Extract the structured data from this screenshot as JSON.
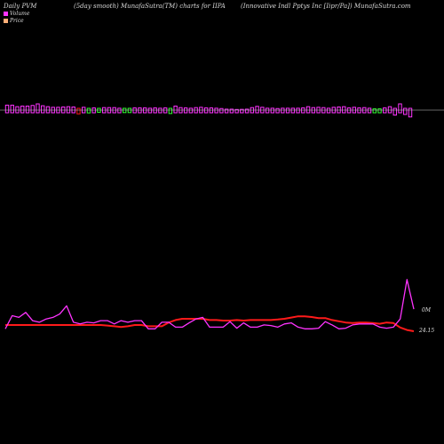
{
  "header": {
    "left": "Daily PVM",
    "middle": "(5day smooth) MunafaSutra(TM) charts for IIPA",
    "right": "(Innovative Indl Pptys Inc [Iipr/Pa]) MunafaSutra.com"
  },
  "legend": {
    "volume": {
      "label": "Volume",
      "color": "#ff33ff"
    },
    "price": {
      "label": "Price",
      "color": "#ffb078"
    }
  },
  "colors": {
    "volume_line": "#ff33ff",
    "price_line": "#ff1a1a",
    "bar_up": "#ff33ff",
    "bar_down_red": "#ff1a1a",
    "bar_down_green": "#33ff33",
    "background": "#000000",
    "zero_line": "#cccccc"
  },
  "chart_data": {
    "type": "line",
    "title": "",
    "xlabel": "",
    "ylabel": "",
    "grid": false,
    "legend_position": "top-left",
    "x": [
      1,
      2,
      3,
      4,
      5,
      6,
      7,
      8,
      9,
      10,
      11,
      12,
      13,
      14,
      15,
      16,
      17,
      18,
      19,
      20,
      21,
      22,
      23,
      24,
      25,
      26,
      27,
      28,
      29,
      30,
      31,
      32,
      33,
      34,
      35,
      36,
      37,
      38,
      39,
      40,
      41,
      42,
      43,
      44,
      45,
      46,
      47,
      48,
      49,
      50,
      51,
      52,
      53,
      54,
      55,
      56,
      57,
      58,
      59,
      60,
      61
    ],
    "series": [
      {
        "kind": "price",
        "values": [
          24.4,
          24.4,
          24.4,
          24.4,
          24.4,
          24.4,
          24.4,
          24.4,
          24.4,
          24.4,
          24.4,
          24.4,
          24.4,
          24.4,
          24.4,
          24.38,
          24.35,
          24.32,
          24.35,
          24.4,
          24.4,
          24.35,
          24.35,
          24.35,
          24.5,
          24.6,
          24.65,
          24.65,
          24.65,
          24.65,
          24.6,
          24.6,
          24.58,
          24.58,
          24.6,
          24.58,
          24.6,
          24.6,
          24.6,
          24.6,
          24.62,
          24.65,
          24.7,
          24.75,
          24.75,
          24.72,
          24.68,
          24.68,
          24.6,
          24.55,
          24.5,
          24.48,
          24.5,
          24.5,
          24.48,
          24.45,
          24.5,
          24.48,
          24.3,
          24.2,
          24.15
        ]
      },
      {
        "kind": "volume",
        "values": [
          0.1,
          0.5,
          0.45,
          0.6,
          0.35,
          0.3,
          0.4,
          0.45,
          0.55,
          0.8,
          0.3,
          0.25,
          0.3,
          0.28,
          0.35,
          0.35,
          0.25,
          0.35,
          0.3,
          0.35,
          0.35,
          0.1,
          0.1,
          0.3,
          0.3,
          0.15,
          0.15,
          0.28,
          0.4,
          0.45,
          0.15,
          0.15,
          0.15,
          0.32,
          0.12,
          0.28,
          0.15,
          0.15,
          0.22,
          0.2,
          0.15,
          0.25,
          0.28,
          0.15,
          0.1,
          0.1,
          0.12,
          0.32,
          0.22,
          0.1,
          0.12,
          0.22,
          0.25,
          0.25,
          0.25,
          0.15,
          0.12,
          0.15,
          0.4,
          1.6,
          0.7
        ]
      }
    ],
    "bars": [
      0.8,
      0.8,
      0.55,
      0.65,
      0.65,
      0.75,
      1.0,
      0.7,
      0.55,
      0.45,
      0.45,
      0.5,
      0.55,
      0.5,
      -0.6,
      0.45,
      -0.45,
      0.35,
      -0.35,
      0.4,
      0.4,
      0.4,
      0.3,
      -0.4,
      -0.4,
      0.35,
      0.35,
      0.35,
      0.3,
      0.35,
      0.3,
      0.35,
      -0.55,
      0.65,
      0.4,
      0.35,
      0.3,
      0.4,
      0.45,
      0.35,
      0.35,
      0.3,
      0.25,
      0.15,
      0.15,
      0.1,
      0.12,
      0.15,
      0.4,
      0.6,
      0.45,
      0.3,
      0.3,
      0.25,
      0.3,
      0.3,
      0.3,
      0.3,
      0.35,
      0.55,
      0.4,
      0.45,
      0.4,
      0.3,
      0.45,
      0.5,
      0.55,
      0.35,
      0.45,
      0.35,
      0.4,
      0.3,
      0.2,
      0.2,
      0.35,
      0.55,
      -0.8,
      1.0,
      -0.7,
      -1.1
    ],
    "bar_colors": [
      "m",
      "m",
      "m",
      "m",
      "m",
      "m",
      "m",
      "m",
      "m",
      "m",
      "m",
      "m",
      "m",
      "m",
      "r",
      "m",
      "g",
      "m",
      "g",
      "m",
      "m",
      "m",
      "m",
      "g",
      "g",
      "m",
      "m",
      "m",
      "m",
      "m",
      "m",
      "m",
      "g",
      "m",
      "m",
      "m",
      "m",
      "m",
      "m",
      "m",
      "m",
      "m",
      "m",
      "m",
      "m",
      "m",
      "m",
      "m",
      "m",
      "m",
      "m",
      "m",
      "m",
      "m",
      "m",
      "m",
      "m",
      "m",
      "m",
      "m",
      "m",
      "m",
      "m",
      "m",
      "m",
      "m",
      "m",
      "m",
      "m",
      "m",
      "m",
      "m",
      "g",
      "g",
      "m",
      "m",
      "m",
      "m",
      "m",
      "m"
    ],
    "labels": {
      "volume_last": "0M",
      "price_last": "24.15"
    }
  }
}
